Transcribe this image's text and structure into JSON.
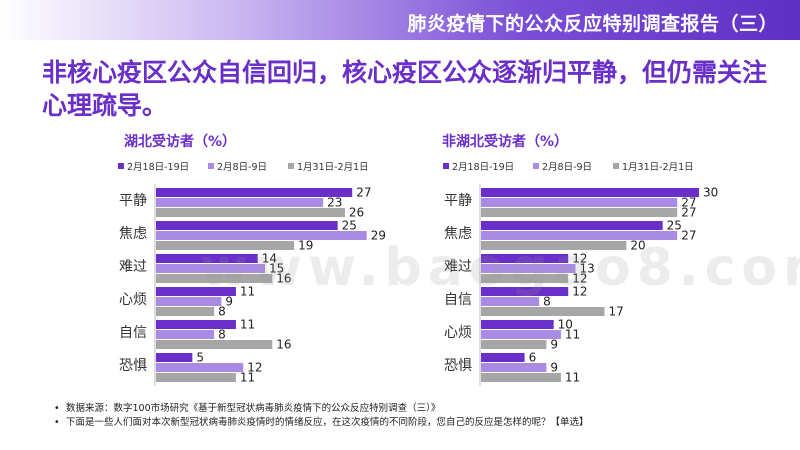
{
  "header": {
    "title": "肺炎疫情下的公众反应特别调查报告（三）"
  },
  "headline": "非核心疫区公众自信回归，核心疫区公众逐渐归平静，但仍需关注心理疏导。",
  "colors": {
    "series1": "#6a2fc9",
    "series2": "#a98be6",
    "series3": "#a6a6a6",
    "accent": "#6a2fc9"
  },
  "chart_data": [
    {
      "type": "bar",
      "orientation": "horizontal",
      "title": "湖北受访者（%）",
      "categories": [
        "平静",
        "焦虑",
        "难过",
        "心烦",
        "自信",
        "恐惧"
      ],
      "series": [
        {
          "name": "2月18日-19日",
          "values": [
            27,
            25,
            14,
            11,
            11,
            5
          ]
        },
        {
          "name": "2月8日-9日",
          "values": [
            23,
            29,
            15,
            9,
            8,
            12
          ]
        },
        {
          "name": "1月31日-2月1日",
          "values": [
            26,
            19,
            16,
            8,
            16,
            11
          ]
        }
      ],
      "xlim": [
        0,
        30
      ],
      "legend": "top"
    },
    {
      "type": "bar",
      "orientation": "horizontal",
      "title": "非湖北受访者（%）",
      "categories": [
        "平静",
        "焦虑",
        "难过",
        "自信",
        "心烦",
        "恐惧"
      ],
      "series": [
        {
          "name": "2月18日-19日",
          "values": [
            30,
            25,
            12,
            12,
            10,
            6
          ]
        },
        {
          "name": "2月8日-9日",
          "values": [
            27,
            27,
            13,
            8,
            11,
            9
          ]
        },
        {
          "name": "1月31日-2月1日",
          "values": [
            27,
            20,
            12,
            17,
            9,
            11
          ]
        }
      ],
      "xlim": [
        0,
        30
      ],
      "legend": "top"
    }
  ],
  "footnotes": [
    "数据来源：数字100市场研究《基于新型冠状病毒肺炎疫情下的公众反应特别调查（三）》",
    "下面是一些人们面对本次新型冠状病毒肺炎疫情时的情绪反应，在这次疫情的不同阶段，您自己的反应是怎样的呢？【单选】"
  ],
  "watermark": "www.baogao8.com"
}
